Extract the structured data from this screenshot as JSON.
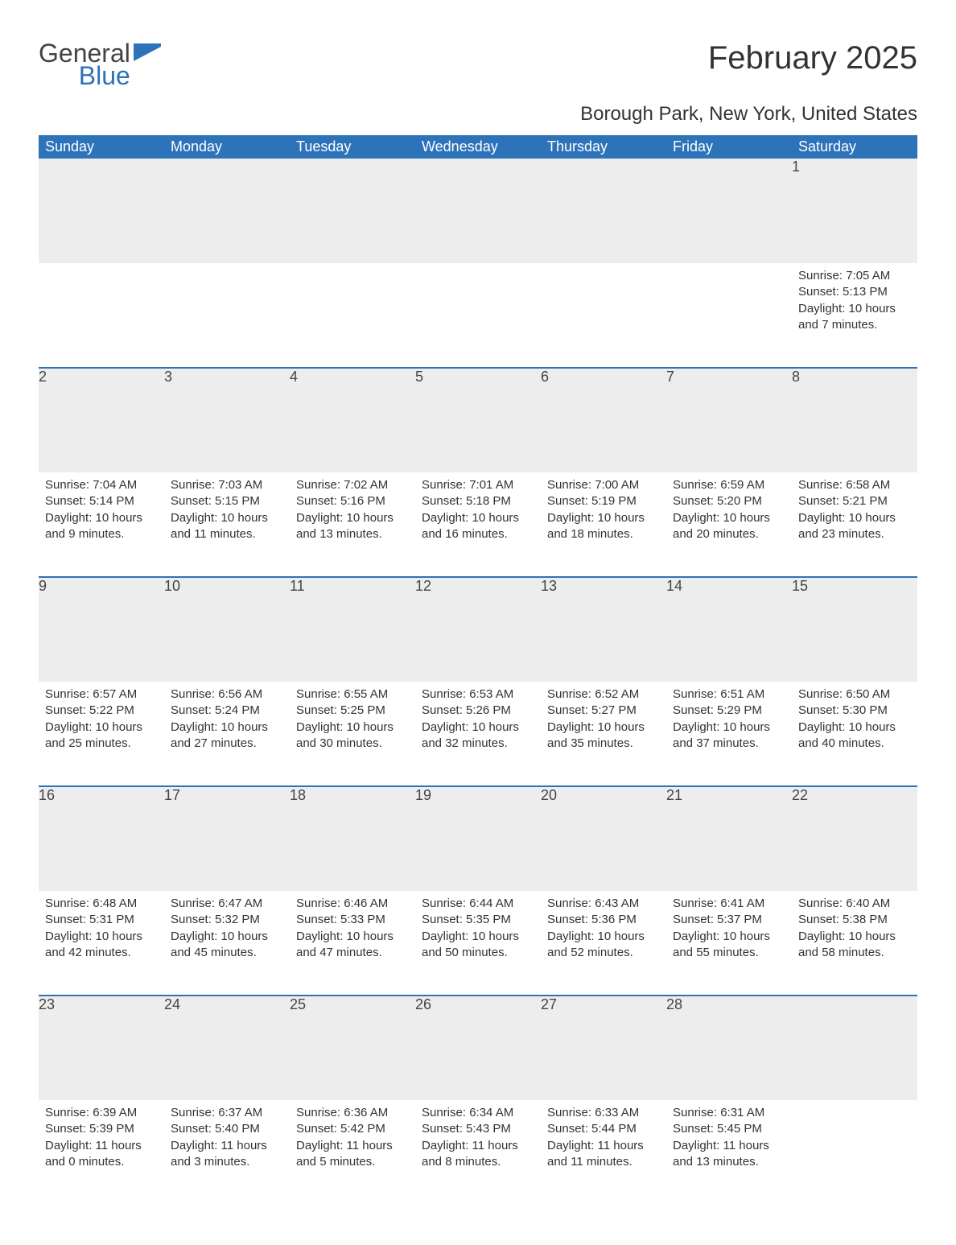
{
  "logo": {
    "line1": "General",
    "line2": "Blue"
  },
  "title": "February 2025",
  "location": "Borough Park, New York, United States",
  "colors": {
    "accent": "#2d73b9",
    "header_bg": "#2d73b9",
    "header_text": "#ffffff",
    "daynum_bg": "#ededed",
    "text": "#333333",
    "page_bg": "#ffffff"
  },
  "typography": {
    "title_fontsize": 40,
    "location_fontsize": 24,
    "weekday_fontsize": 18,
    "daynum_fontsize": 18,
    "body_fontsize": 15
  },
  "weekdays": [
    "Sunday",
    "Monday",
    "Tuesday",
    "Wednesday",
    "Thursday",
    "Friday",
    "Saturday"
  ],
  "labels": {
    "sunrise": "Sunrise: ",
    "sunset": "Sunset: ",
    "daylight": "Daylight: "
  },
  "weeks": [
    [
      null,
      null,
      null,
      null,
      null,
      null,
      {
        "d": "1",
        "sunrise": "7:05 AM",
        "sunset": "5:13 PM",
        "daylight": "10 hours and 7 minutes."
      }
    ],
    [
      {
        "d": "2",
        "sunrise": "7:04 AM",
        "sunset": "5:14 PM",
        "daylight": "10 hours and 9 minutes."
      },
      {
        "d": "3",
        "sunrise": "7:03 AM",
        "sunset": "5:15 PM",
        "daylight": "10 hours and 11 minutes."
      },
      {
        "d": "4",
        "sunrise": "7:02 AM",
        "sunset": "5:16 PM",
        "daylight": "10 hours and 13 minutes."
      },
      {
        "d": "5",
        "sunrise": "7:01 AM",
        "sunset": "5:18 PM",
        "daylight": "10 hours and 16 minutes."
      },
      {
        "d": "6",
        "sunrise": "7:00 AM",
        "sunset": "5:19 PM",
        "daylight": "10 hours and 18 minutes."
      },
      {
        "d": "7",
        "sunrise": "6:59 AM",
        "sunset": "5:20 PM",
        "daylight": "10 hours and 20 minutes."
      },
      {
        "d": "8",
        "sunrise": "6:58 AM",
        "sunset": "5:21 PM",
        "daylight": "10 hours and 23 minutes."
      }
    ],
    [
      {
        "d": "9",
        "sunrise": "6:57 AM",
        "sunset": "5:22 PM",
        "daylight": "10 hours and 25 minutes."
      },
      {
        "d": "10",
        "sunrise": "6:56 AM",
        "sunset": "5:24 PM",
        "daylight": "10 hours and 27 minutes."
      },
      {
        "d": "11",
        "sunrise": "6:55 AM",
        "sunset": "5:25 PM",
        "daylight": "10 hours and 30 minutes."
      },
      {
        "d": "12",
        "sunrise": "6:53 AM",
        "sunset": "5:26 PM",
        "daylight": "10 hours and 32 minutes."
      },
      {
        "d": "13",
        "sunrise": "6:52 AM",
        "sunset": "5:27 PM",
        "daylight": "10 hours and 35 minutes."
      },
      {
        "d": "14",
        "sunrise": "6:51 AM",
        "sunset": "5:29 PM",
        "daylight": "10 hours and 37 minutes."
      },
      {
        "d": "15",
        "sunrise": "6:50 AM",
        "sunset": "5:30 PM",
        "daylight": "10 hours and 40 minutes."
      }
    ],
    [
      {
        "d": "16",
        "sunrise": "6:48 AM",
        "sunset": "5:31 PM",
        "daylight": "10 hours and 42 minutes."
      },
      {
        "d": "17",
        "sunrise": "6:47 AM",
        "sunset": "5:32 PM",
        "daylight": "10 hours and 45 minutes."
      },
      {
        "d": "18",
        "sunrise": "6:46 AM",
        "sunset": "5:33 PM",
        "daylight": "10 hours and 47 minutes."
      },
      {
        "d": "19",
        "sunrise": "6:44 AM",
        "sunset": "5:35 PM",
        "daylight": "10 hours and 50 minutes."
      },
      {
        "d": "20",
        "sunrise": "6:43 AM",
        "sunset": "5:36 PM",
        "daylight": "10 hours and 52 minutes."
      },
      {
        "d": "21",
        "sunrise": "6:41 AM",
        "sunset": "5:37 PM",
        "daylight": "10 hours and 55 minutes."
      },
      {
        "d": "22",
        "sunrise": "6:40 AM",
        "sunset": "5:38 PM",
        "daylight": "10 hours and 58 minutes."
      }
    ],
    [
      {
        "d": "23",
        "sunrise": "6:39 AM",
        "sunset": "5:39 PM",
        "daylight": "11 hours and 0 minutes."
      },
      {
        "d": "24",
        "sunrise": "6:37 AM",
        "sunset": "5:40 PM",
        "daylight": "11 hours and 3 minutes."
      },
      {
        "d": "25",
        "sunrise": "6:36 AM",
        "sunset": "5:42 PM",
        "daylight": "11 hours and 5 minutes."
      },
      {
        "d": "26",
        "sunrise": "6:34 AM",
        "sunset": "5:43 PM",
        "daylight": "11 hours and 8 minutes."
      },
      {
        "d": "27",
        "sunrise": "6:33 AM",
        "sunset": "5:44 PM",
        "daylight": "11 hours and 11 minutes."
      },
      {
        "d": "28",
        "sunrise": "6:31 AM",
        "sunset": "5:45 PM",
        "daylight": "11 hours and 13 minutes."
      },
      null
    ]
  ]
}
